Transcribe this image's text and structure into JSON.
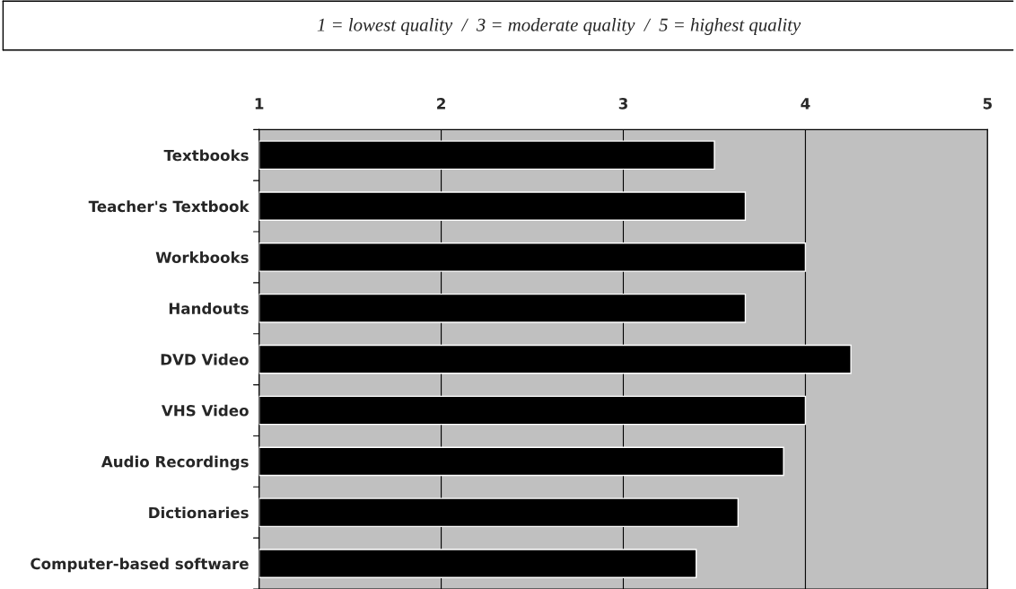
{
  "chart_data": {
    "type": "bar",
    "orientation": "horizontal",
    "title": "1 = lowest quality  /  3 = moderate quality  /  5 = highest quality",
    "categories": [
      "Textbooks",
      "Teacher's Textbook",
      "Workbooks",
      "Handouts",
      "DVD Video",
      "VHS Video",
      "Audio Recordings",
      "Dictionaries",
      "Computer-based software"
    ],
    "values": [
      3.5,
      3.67,
      4.0,
      3.67,
      4.25,
      4.0,
      3.88,
      3.63,
      3.4
    ],
    "color": "#000000",
    "xlim": [
      1,
      5
    ],
    "xticks": [
      1,
      2,
      3,
      4,
      5
    ],
    "grid": "x"
  }
}
